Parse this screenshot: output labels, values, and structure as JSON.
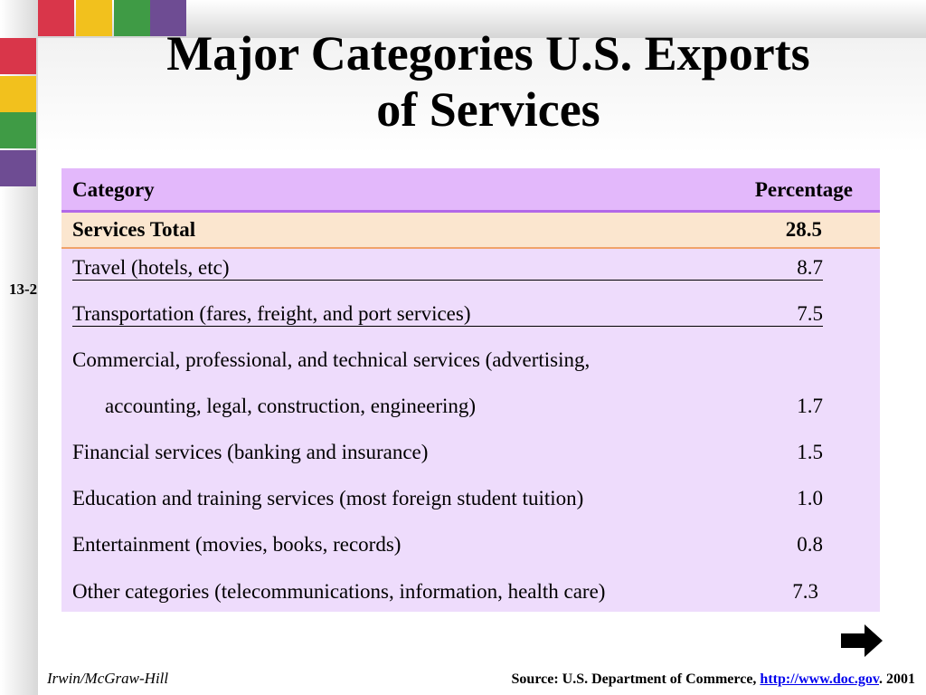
{
  "slide": {
    "number": "13-2",
    "title_line1": "Major Categories U.S. Exports",
    "title_line2": "of Services"
  },
  "colors": {
    "red": "#d9364a",
    "yellow": "#f2c11d",
    "green": "#3f9b45",
    "purple": "#6e4c93",
    "header": "#e3b8fb",
    "body": "#eedcfc",
    "total": "#fbe6cf"
  },
  "table": {
    "header": {
      "category": "Category",
      "percentage": "Percentage"
    },
    "total": {
      "category": "Services Total",
      "percentage": "28.5"
    },
    "rows": [
      {
        "category": "Travel (hotels, etc)",
        "percentage": "8.7"
      },
      {
        "category": "Transportation (fares, freight, and port services)",
        "percentage": "7.5"
      },
      {
        "category": "Commercial, professional, and technical services (advertising,",
        "percentage": ""
      },
      {
        "category": "accounting, legal, construction, engineering)",
        "percentage": "1.7"
      },
      {
        "category": "Financial services (banking and insurance)",
        "percentage": "1.5"
      },
      {
        "category": "Education and training services (most foreign student tuition)",
        "percentage": "1.0"
      },
      {
        "category": "Entertainment (movies, books, records)",
        "percentage": "0.8"
      },
      {
        "category": "Other categories (telecommunications, information, health care)",
        "percentage": "7.3"
      }
    ]
  },
  "footer": {
    "publisher": "Irwin/McGraw-Hill",
    "source_prefix": "Source:  U.S. Department of Commerce, ",
    "source_link": "http://www.doc.gov",
    "source_suffix": ".  2001"
  },
  "icons": {
    "next": "right-arrow-icon"
  }
}
